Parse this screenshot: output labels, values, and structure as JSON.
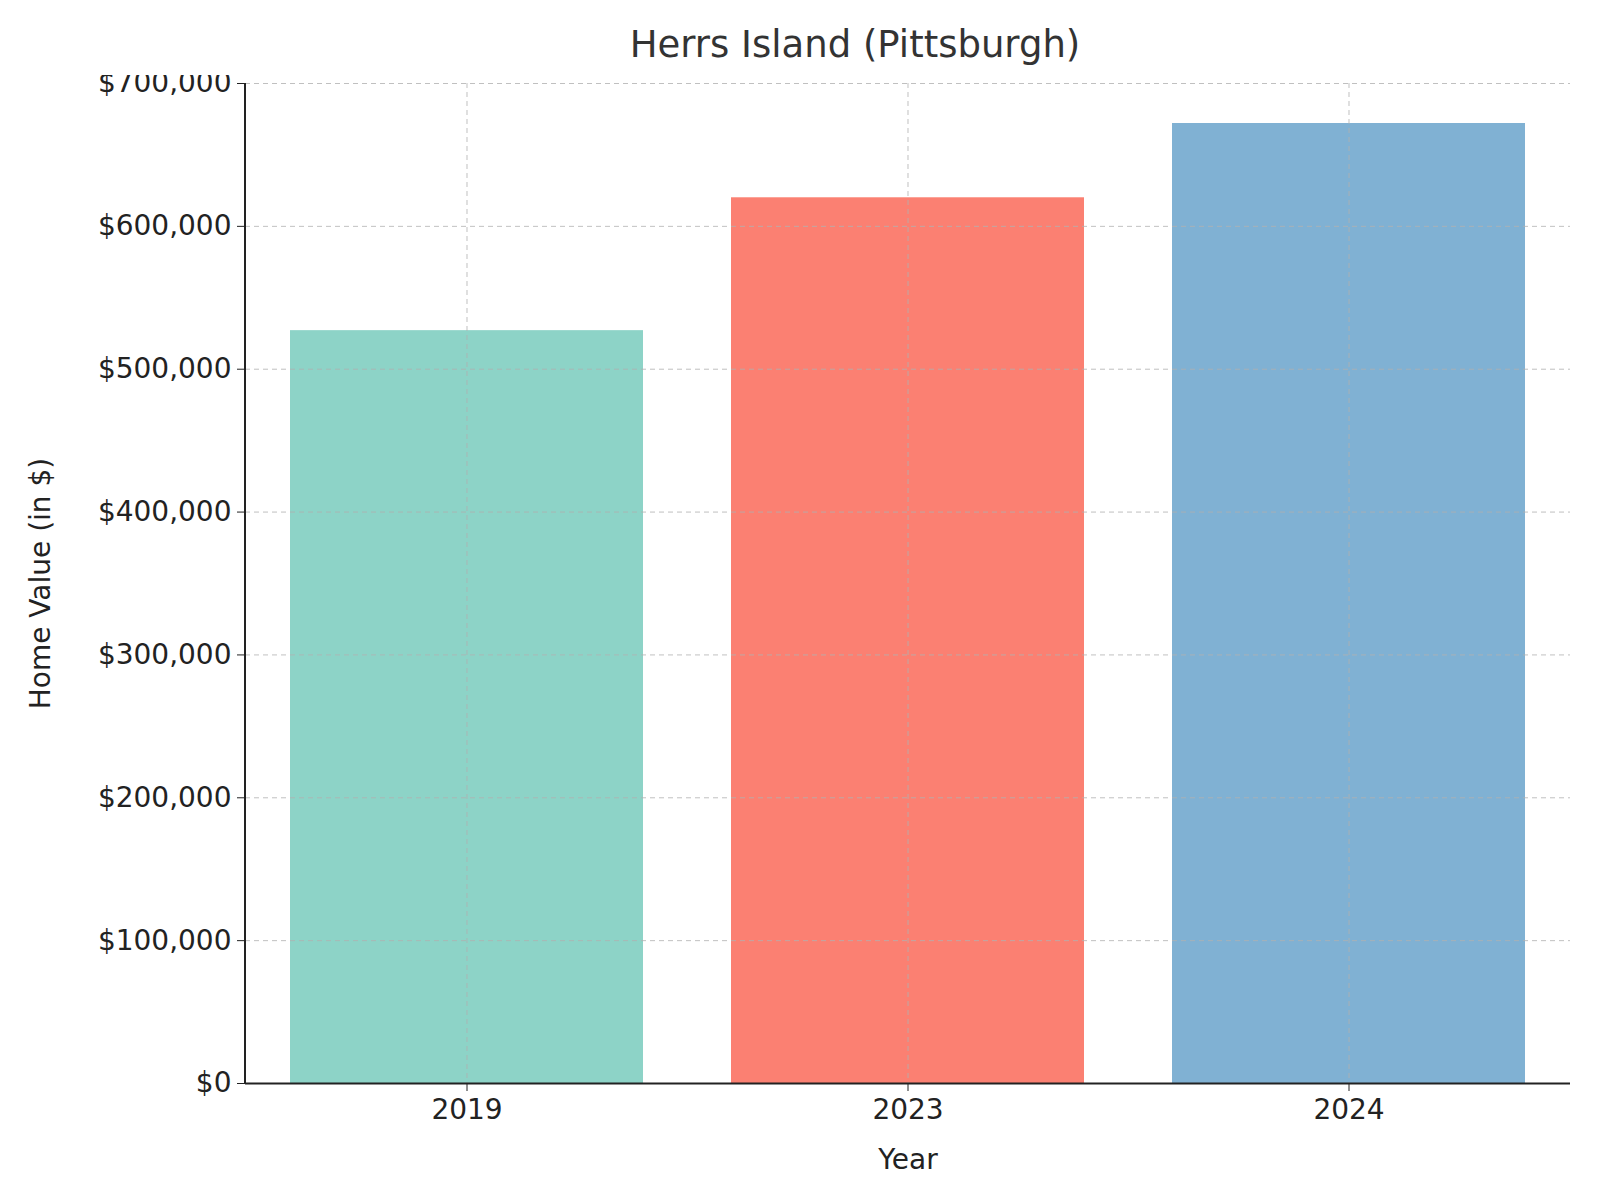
{
  "chart_data": {
    "type": "bar",
    "title": "Herrs Island (Pittsburgh)",
    "xlabel": "Year",
    "ylabel": "Home Value (in $)",
    "categories": [
      "2019",
      "2023",
      "2024"
    ],
    "values": [
      527000,
      620000,
      672000
    ],
    "colors": [
      "#8dd3c7",
      "#fb8072",
      "#80b1d3"
    ],
    "ylim": [
      0,
      700000
    ],
    "yticks": [
      {
        "value": 0,
        "label": "$0"
      },
      {
        "value": 100000,
        "label": "$100,000"
      },
      {
        "value": 200000,
        "label": "$200,000"
      },
      {
        "value": 300000,
        "label": "$300,000"
      },
      {
        "value": 400000,
        "label": "$400,000"
      },
      {
        "value": 500000,
        "label": "$500,000"
      },
      {
        "value": 600000,
        "label": "$600,000"
      },
      {
        "value": 700000,
        "label": "$700,000"
      }
    ],
    "grid": true
  }
}
